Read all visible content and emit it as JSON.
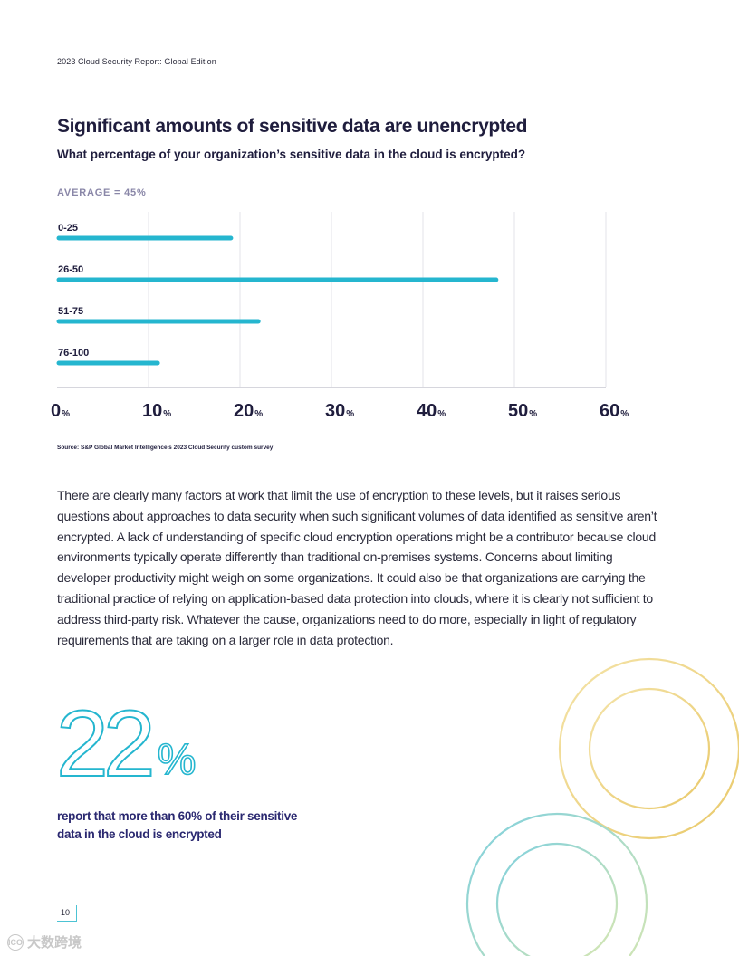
{
  "header": {
    "report_title": "2023 Cloud Security Report: Global Edition"
  },
  "section": {
    "title": "Significant amounts of sensitive data are unencrypted",
    "question": "What percentage of your organization’s sensitive data in the cloud is encrypted?",
    "average_label": "AVERAGE = 45%"
  },
  "chart_data": {
    "type": "bar",
    "orientation": "horizontal",
    "categories": [
      "0-25",
      "26-50",
      "51-75",
      "76-100"
    ],
    "values": [
      19,
      48,
      22,
      11
    ],
    "xlim": [
      0,
      60
    ],
    "xticks": [
      0,
      10,
      20,
      30,
      40,
      50,
      60
    ],
    "tick_suffix": "%",
    "grid": true,
    "bar_color": "#25b6cf",
    "title": "",
    "xlabel": "",
    "ylabel": ""
  },
  "source": "Source: S&P Global Market Intelligence’s 2023 Cloud Security custom survey",
  "body_paragraph": "There are clearly many factors at work that limit the use of encryption to these levels, but it raises serious questions about approaches to data security when such significant volumes of data identified as sensitive aren’t encrypted. A lack of understanding of specific cloud encryption operations might be a contributor because cloud environments typically operate differently than traditional on-premises systems. Concerns about limiting developer productivity might weigh on some organizations. It could also be that organizations are carrying the traditional practice of relying on application-based data protection into clouds, where it is clearly not sufficient to address third-party risk. Whatever the cause, organizations need to do more, especially in light of regulatory requirements that are taking on a larger role in data protection.",
  "stat": {
    "value": "22",
    "unit": "%",
    "caption": "report that more than 60% of their sensitive data in the cloud is encrypted"
  },
  "page_number": "10",
  "watermark": {
    "text": "大数跨境",
    "icon_text": "ICO"
  },
  "colors": {
    "accent": "#25b6cf",
    "navy": "#1f1d3d",
    "ring_gold": "#f3d58a",
    "ring_teal": "#8fd3e0"
  }
}
